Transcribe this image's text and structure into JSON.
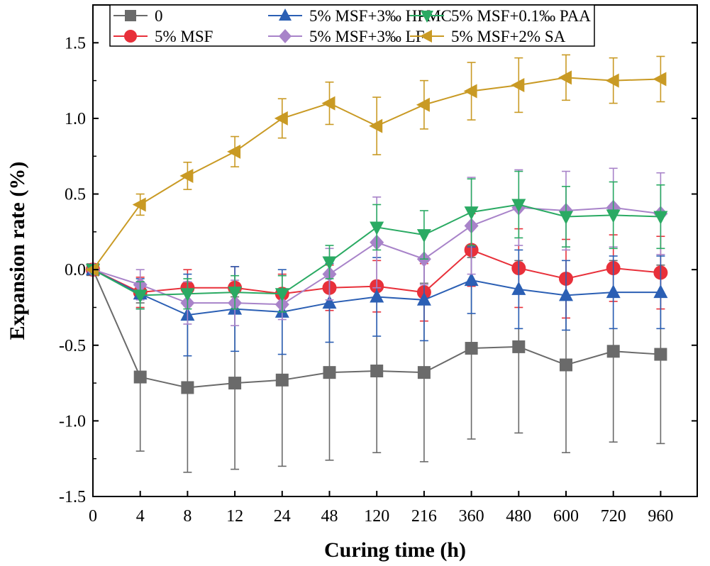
{
  "chart_data": {
    "type": "line",
    "xlabel": "Curing time (h)",
    "ylabel": "Expansion rate (%)",
    "categories": [
      "0",
      "4",
      "8",
      "12",
      "24",
      "48",
      "120",
      "216",
      "360",
      "480",
      "600",
      "720",
      "960"
    ],
    "ylim": [
      -1.5,
      1.75
    ],
    "yticks": [
      "-1.5",
      "-1.0",
      "-0.5",
      "0.0",
      "0.5",
      "1.0",
      "1.5"
    ],
    "legend_position": "top",
    "series": [
      {
        "name": "0",
        "color": "#6a6a6a",
        "marker": "square",
        "values": [
          0.0,
          -0.71,
          -0.78,
          -0.75,
          -0.73,
          -0.68,
          -0.67,
          -0.68,
          -0.52,
          -0.51,
          -0.63,
          -0.54,
          -0.56
        ],
        "errors": [
          0.0,
          0.49,
          0.56,
          0.57,
          0.57,
          0.58,
          0.54,
          0.59,
          0.6,
          0.57,
          0.58,
          0.6,
          0.59
        ]
      },
      {
        "name": "5% MSF",
        "color": "#e8303a",
        "marker": "circle",
        "values": [
          0.0,
          -0.15,
          -0.12,
          -0.12,
          -0.16,
          -0.12,
          -0.11,
          -0.15,
          0.13,
          0.01,
          -0.06,
          0.01,
          -0.02
        ],
        "errors": [
          0.0,
          0.1,
          0.12,
          0.14,
          0.13,
          0.15,
          0.17,
          0.19,
          0.24,
          0.26,
          0.26,
          0.22,
          0.24
        ]
      },
      {
        "name": "5% MSF+3‰ HPMC",
        "color": "#2b5fb4",
        "marker": "triangle-up",
        "values": [
          0.0,
          -0.16,
          -0.3,
          -0.26,
          -0.28,
          -0.22,
          -0.18,
          -0.2,
          -0.07,
          -0.13,
          -0.17,
          -0.15,
          -0.15
        ],
        "errors": [
          0.0,
          0.1,
          0.27,
          0.28,
          0.28,
          0.26,
          0.26,
          0.27,
          0.22,
          0.26,
          0.23,
          0.24,
          0.24
        ]
      },
      {
        "name": "5% MSF+3‰ LF",
        "color": "#a883c9",
        "marker": "diamond",
        "values": [
          0.0,
          -0.1,
          -0.22,
          -0.22,
          -0.23,
          -0.03,
          0.18,
          0.07,
          0.29,
          0.41,
          0.39,
          0.41,
          0.37
        ],
        "errors": [
          0.0,
          0.1,
          0.14,
          0.15,
          0.1,
          0.17,
          0.3,
          0.17,
          0.32,
          0.25,
          0.26,
          0.26,
          0.27
        ]
      },
      {
        "name": "5% MSF+0.1‰ PAA",
        "color": "#2aaa63",
        "marker": "triangle-down",
        "values": [
          0.0,
          -0.17,
          -0.16,
          -0.15,
          -0.16,
          0.05,
          0.28,
          0.23,
          0.38,
          0.43,
          0.35,
          0.36,
          0.35
        ],
        "errors": [
          0.0,
          0.09,
          0.1,
          0.11,
          0.12,
          0.11,
          0.15,
          0.16,
          0.22,
          0.22,
          0.2,
          0.22,
          0.21
        ]
      },
      {
        "name": "5% MSF+2% SA",
        "color": "#c99a24",
        "marker": "triangle-left",
        "values": [
          0.0,
          0.43,
          0.62,
          0.78,
          1.0,
          1.1,
          0.95,
          1.09,
          1.18,
          1.22,
          1.27,
          1.25,
          1.26
        ],
        "errors": [
          0.0,
          0.07,
          0.09,
          0.1,
          0.13,
          0.14,
          0.19,
          0.16,
          0.19,
          0.18,
          0.15,
          0.15,
          0.15
        ]
      }
    ],
    "legend_order": [
      0,
      2,
      4,
      1,
      3,
      5
    ]
  }
}
